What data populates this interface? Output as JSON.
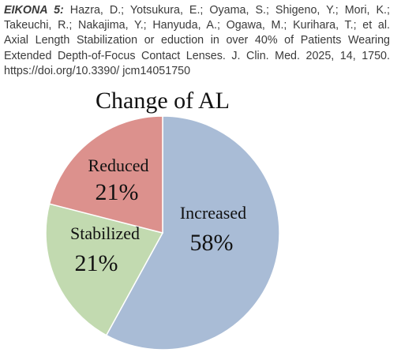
{
  "caption": {
    "label": "EIKONA 5:",
    "lines": [
      "Hazra, D.; Yotsukura, E.; Oyama, S.; Shigeno, Y.; Mori, K.;",
      "Takeuchi, R.; Nakajima, Y.; Hanyuda, A.; Ogawa, M.; Kurihara, T.; et al.",
      "Axial Length Stabilization or eduction in over 40% of Patients Wearing",
      "Extended Depth-of-Focus Contact Lenses. J. Clin. Med. 2025, 14, 1750.",
      "https://doi.org/10.3390/ jcm14051750"
    ]
  },
  "chart_data": {
    "type": "pie",
    "title": "Change of AL",
    "categories": [
      "Increased",
      "Stabilized",
      "Reduced"
    ],
    "values": [
      58,
      21,
      21
    ],
    "value_labels": [
      "58%",
      "21%",
      "21%"
    ],
    "colors": [
      "#a9bcd6",
      "#c2dab0",
      "#dc918d"
    ]
  }
}
